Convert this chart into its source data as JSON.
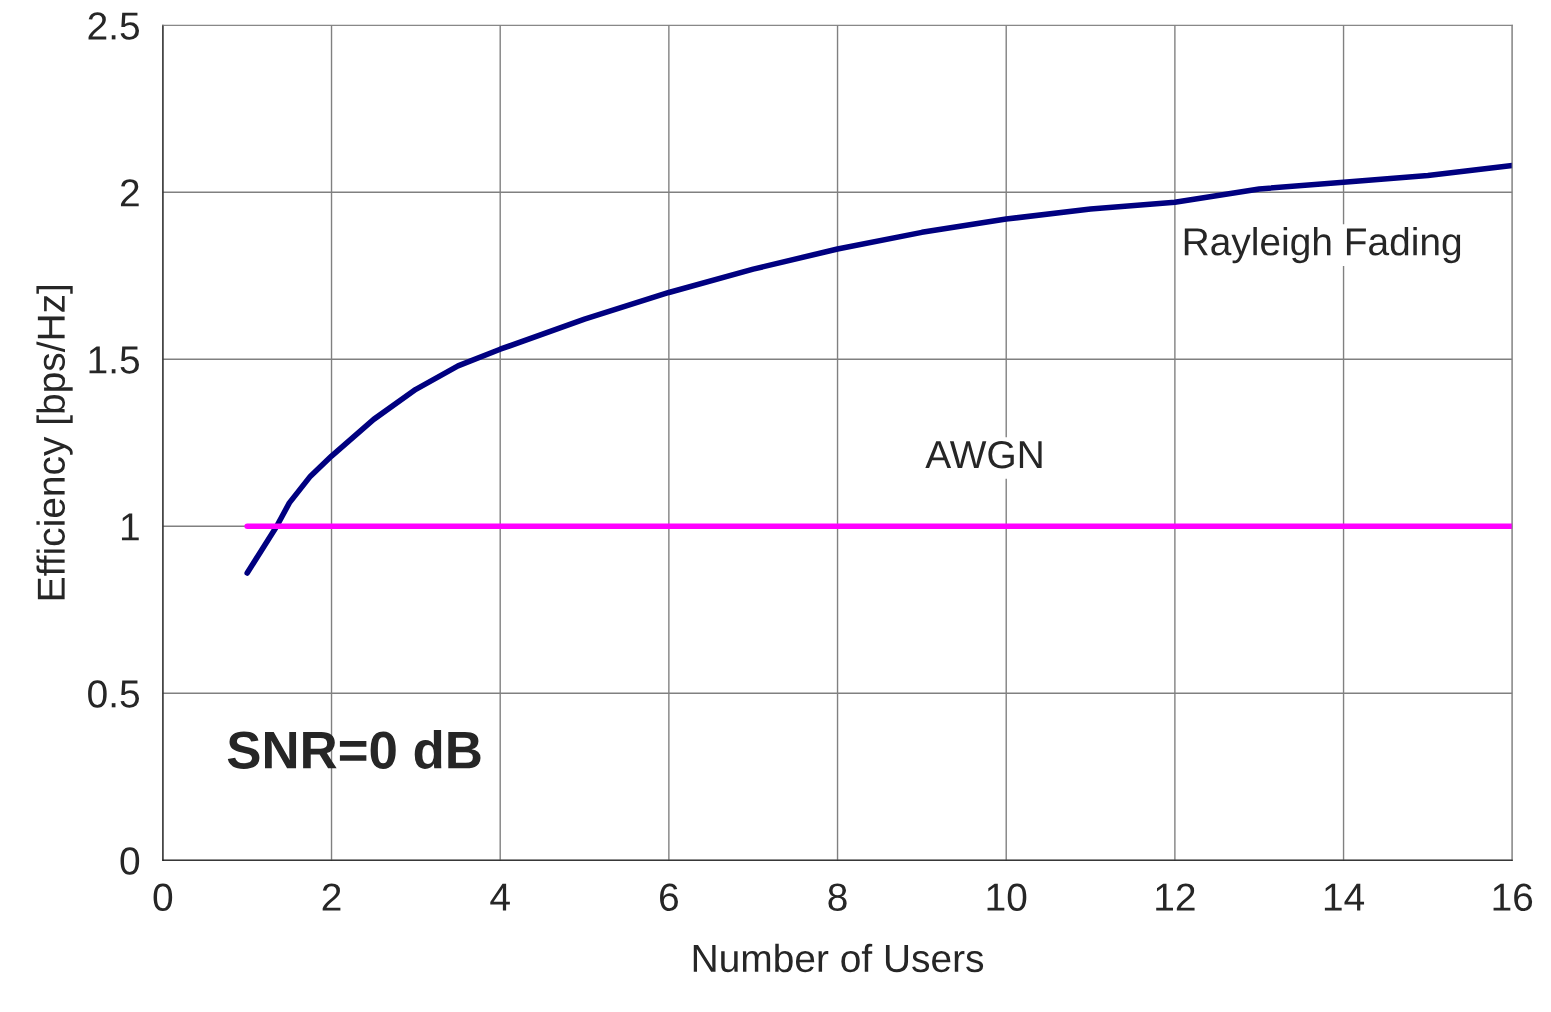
{
  "chart_data": {
    "type": "line",
    "xlabel": "Number of Users",
    "ylabel": "Efficiency [bps/Hz]",
    "xlim": [
      0,
      16
    ],
    "ylim": [
      0,
      2.5
    ],
    "xticks": [
      0,
      2,
      4,
      6,
      8,
      10,
      12,
      14,
      16
    ],
    "yticks": [
      0,
      0.5,
      1,
      1.5,
      2,
      2.5
    ],
    "grid": true,
    "marker": "none",
    "line_style": "solid",
    "series": [
      {
        "name": "Rayleigh Fading",
        "color": "#000080",
        "x": [
          1,
          1.35,
          1.5,
          1.75,
          2,
          2.5,
          3,
          3.5,
          4,
          5,
          6,
          7,
          8,
          9,
          10,
          11,
          12,
          13,
          14,
          15,
          16
        ],
        "values": [
          0.86,
          1.0,
          1.07,
          1.15,
          1.21,
          1.32,
          1.41,
          1.48,
          1.53,
          1.62,
          1.7,
          1.77,
          1.83,
          1.88,
          1.92,
          1.95,
          1.97,
          2.01,
          2.03,
          2.05,
          2.08
        ]
      },
      {
        "name": "AWGN",
        "color": "#ff00ff",
        "x": [
          1,
          16
        ],
        "values": [
          1,
          1
        ]
      }
    ],
    "annotations": [
      "SNR=0 dB"
    ]
  }
}
